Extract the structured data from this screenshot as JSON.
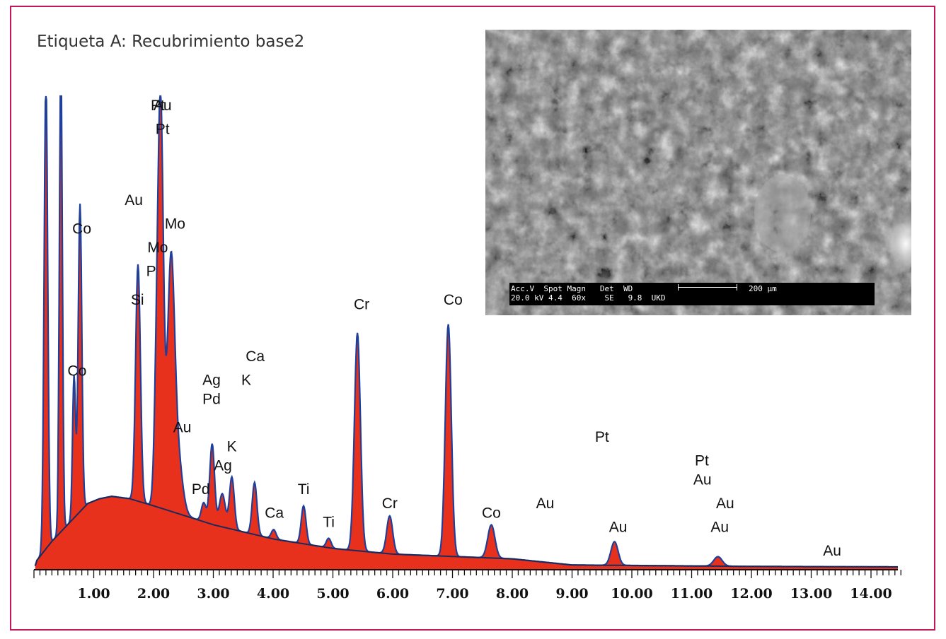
{
  "title": "Etiqueta A: Recubrimiento base2",
  "colors": {
    "frame": "#c2185b",
    "spectrum_fill": "#e8311d",
    "spectrum_line": "#1f3f99",
    "background_line": "#1b2a5a"
  },
  "chart_data": {
    "type": "area",
    "title": "Etiqueta A: Recubrimiento base2",
    "xlabel": "",
    "ylabel": "",
    "xlim": [
      0,
      14.45
    ],
    "ylim": [
      0,
      100
    ],
    "grid": false,
    "x_ticks": [
      "1.00",
      "2.00",
      "3.00",
      "4.00",
      "5.00",
      "6.00",
      "7.00",
      "8.00",
      "9.00",
      "10.00",
      "11.00",
      "12.00",
      "13.00",
      "14.00"
    ],
    "background": [
      [
        0.05,
        2
      ],
      [
        0.3,
        6
      ],
      [
        0.6,
        10
      ],
      [
        0.9,
        14
      ],
      [
        1.1,
        15
      ],
      [
        1.3,
        15.5
      ],
      [
        1.6,
        15
      ],
      [
        2.0,
        13.5
      ],
      [
        2.5,
        11.5
      ],
      [
        3.0,
        9.5
      ],
      [
        3.5,
        8
      ],
      [
        4.0,
        6.5
      ],
      [
        4.5,
        5.5
      ],
      [
        5.0,
        4.5
      ],
      [
        6.0,
        3.3
      ],
      [
        7.0,
        2.8
      ],
      [
        8.0,
        2.3
      ],
      [
        9.0,
        1.0
      ],
      [
        10.0,
        0.9
      ],
      [
        12.0,
        0.7
      ],
      [
        14.4,
        0.6
      ]
    ],
    "peaks": [
      {
        "element": "Co",
        "center": 0.2,
        "height": 100,
        "width": 0.03
      },
      {
        "element": "Co",
        "center": 0.45,
        "height": 100,
        "width": 0.025
      },
      {
        "element": "Co",
        "center": 0.67,
        "height": 30,
        "width": 0.025
      },
      {
        "element": "Co",
        "center": 0.77,
        "height": 65,
        "width": 0.03
      },
      {
        "element": "Si",
        "center": 1.74,
        "height": 50,
        "width": 0.04
      },
      {
        "element": "Au",
        "center": 2.05,
        "height": 22,
        "width": 0.04
      },
      {
        "element": "Pt",
        "center": 2.12,
        "height": 83,
        "width": 0.045
      },
      {
        "element": "Mo",
        "center": 2.29,
        "height": 50,
        "width": 0.06
      },
      {
        "element": "Au",
        "center": 2.4,
        "height": 12,
        "width": 0.08
      },
      {
        "element": "Pd",
        "center": 2.84,
        "height": 4,
        "width": 0.04
      },
      {
        "element": "Ag",
        "center": 2.98,
        "height": 17,
        "width": 0.04
      },
      {
        "element": "Ag",
        "center": 3.15,
        "height": 7,
        "width": 0.05
      },
      {
        "element": "K",
        "center": 3.31,
        "height": 11,
        "width": 0.04
      },
      {
        "element": "Ca",
        "center": 3.69,
        "height": 11,
        "width": 0.04
      },
      {
        "element": "Ca",
        "center": 4.01,
        "height": 2,
        "width": 0.04
      },
      {
        "element": "Ti",
        "center": 4.51,
        "height": 8,
        "width": 0.04
      },
      {
        "element": "Ti",
        "center": 4.93,
        "height": 2,
        "width": 0.04
      },
      {
        "element": "Cr",
        "center": 5.41,
        "height": 46,
        "width": 0.05
      },
      {
        "element": "Cr",
        "center": 5.95,
        "height": 8,
        "width": 0.05
      },
      {
        "element": "Co",
        "center": 6.93,
        "height": 49,
        "width": 0.05
      },
      {
        "element": "Co",
        "center": 7.65,
        "height": 7,
        "width": 0.06
      },
      {
        "element": "Au",
        "center": 9.71,
        "height": 5,
        "width": 0.06
      },
      {
        "element": "Au",
        "center": 11.44,
        "height": 2,
        "width": 0.07
      }
    ],
    "labels": [
      {
        "text": "Pt",
        "x": 2.07,
        "y": 97
      },
      {
        "text": "Au",
        "x": 2.15,
        "y": 97
      },
      {
        "text": "Pt",
        "x": 2.15,
        "y": 92
      },
      {
        "text": "Au",
        "x": 1.67,
        "y": 77
      },
      {
        "text": "Mo",
        "x": 2.36,
        "y": 72
      },
      {
        "text": "Co",
        "x": 0.8,
        "y": 71
      },
      {
        "text": "Mo",
        "x": 2.07,
        "y": 67
      },
      {
        "text": "P",
        "x": 1.96,
        "y": 62
      },
      {
        "text": "Si",
        "x": 1.73,
        "y": 56
      },
      {
        "text": "Cr",
        "x": 5.48,
        "y": 55
      },
      {
        "text": "Co",
        "x": 7.01,
        "y": 56
      },
      {
        "text": "Co",
        "x": 0.72,
        "y": 41
      },
      {
        "text": "Ca",
        "x": 3.7,
        "y": 44
      },
      {
        "text": "Ag",
        "x": 2.97,
        "y": 39
      },
      {
        "text": "K",
        "x": 3.55,
        "y": 39
      },
      {
        "text": "Pd",
        "x": 2.97,
        "y": 35
      },
      {
        "text": "Au",
        "x": 2.48,
        "y": 29
      },
      {
        "text": "K",
        "x": 3.31,
        "y": 25
      },
      {
        "text": "Ag",
        "x": 3.16,
        "y": 21
      },
      {
        "text": "Pd",
        "x": 2.79,
        "y": 16
      },
      {
        "text": "Ti",
        "x": 4.51,
        "y": 16
      },
      {
        "text": "Ca",
        "x": 4.02,
        "y": 11
      },
      {
        "text": "Ti",
        "x": 4.93,
        "y": 9
      },
      {
        "text": "Cr",
        "x": 5.95,
        "y": 13
      },
      {
        "text": "Co",
        "x": 7.65,
        "y": 11
      },
      {
        "text": "Au",
        "x": 8.55,
        "y": 13
      },
      {
        "text": "Pt",
        "x": 9.5,
        "y": 27
      },
      {
        "text": "Pt",
        "x": 11.17,
        "y": 22
      },
      {
        "text": "Au",
        "x": 11.18,
        "y": 18
      },
      {
        "text": "Au",
        "x": 11.56,
        "y": 13
      },
      {
        "text": "Au",
        "x": 9.77,
        "y": 8
      },
      {
        "text": "Au",
        "x": 11.47,
        "y": 8
      },
      {
        "text": "Au",
        "x": 13.35,
        "y": 3
      }
    ]
  },
  "sem_image": {
    "row1": "Acc.V  Spot Magn   Det  WD",
    "row2": "20.0 kV 4.4  60x    SE   9.8  UKD",
    "scale_label": "200 µm"
  }
}
